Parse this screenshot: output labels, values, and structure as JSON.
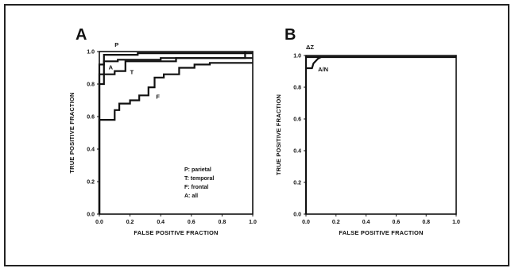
{
  "chart_data": [
    {
      "type": "line",
      "panel_label": "A",
      "xlabel": "FALSE POSITIVE FRACTION",
      "ylabel": "TRUE POSITIVE FRACTION",
      "xlim": [
        0,
        1
      ],
      "ylim": [
        0,
        1
      ],
      "xticks": [
        "0.0",
        "0.2",
        "0.4",
        "0.6",
        "0.8",
        "1.0"
      ],
      "yticks": [
        "0.0",
        "0.2",
        "0.4",
        "0.6",
        "0.8",
        "1.0"
      ],
      "grid": false,
      "legend_position": "bottom-right",
      "legend": [
        "P: parietal",
        "T: temporal",
        "F: frontal",
        "A: all"
      ],
      "series": [
        {
          "name": "P",
          "points": [
            [
              0,
              0
            ],
            [
              0,
              0.92
            ],
            [
              0.03,
              0.92
            ],
            [
              0.03,
              0.98
            ],
            [
              0.25,
              0.98
            ],
            [
              0.25,
              0.99
            ],
            [
              1,
              0.99
            ]
          ]
        },
        {
          "name": "A",
          "points": [
            [
              0,
              0
            ],
            [
              0,
              0.86
            ],
            [
              0.03,
              0.86
            ],
            [
              0.03,
              0.94
            ],
            [
              0.12,
              0.94
            ],
            [
              0.12,
              0.95
            ],
            [
              0.4,
              0.95
            ],
            [
              0.4,
              0.96
            ],
            [
              1,
              0.96
            ]
          ]
        },
        {
          "name": "T",
          "points": [
            [
              0,
              0
            ],
            [
              0,
              0.8
            ],
            [
              0.03,
              0.8
            ],
            [
              0.03,
              0.86
            ],
            [
              0.1,
              0.86
            ],
            [
              0.1,
              0.88
            ],
            [
              0.17,
              0.88
            ],
            [
              0.17,
              0.94
            ],
            [
              0.5,
              0.94
            ],
            [
              0.5,
              0.96
            ],
            [
              0.95,
              0.96
            ],
            [
              0.95,
              1.0
            ]
          ]
        },
        {
          "name": "F",
          "points": [
            [
              0,
              0
            ],
            [
              0,
              0.58
            ],
            [
              0.1,
              0.58
            ],
            [
              0.1,
              0.64
            ],
            [
              0.13,
              0.64
            ],
            [
              0.13,
              0.68
            ],
            [
              0.2,
              0.68
            ],
            [
              0.2,
              0.7
            ],
            [
              0.26,
              0.7
            ],
            [
              0.26,
              0.73
            ],
            [
              0.32,
              0.73
            ],
            [
              0.32,
              0.78
            ],
            [
              0.36,
              0.78
            ],
            [
              0.36,
              0.84
            ],
            [
              0.42,
              0.84
            ],
            [
              0.42,
              0.86
            ],
            [
              0.52,
              0.86
            ],
            [
              0.52,
              0.9
            ],
            [
              0.62,
              0.9
            ],
            [
              0.62,
              0.92
            ],
            [
              0.72,
              0.92
            ],
            [
              0.72,
              0.93
            ],
            [
              1,
              0.93
            ]
          ]
        }
      ],
      "curve_labels": [
        {
          "text": "P",
          "x": 0.1,
          "y": 1.03
        },
        {
          "text": "A",
          "x": 0.06,
          "y": 0.89
        },
        {
          "text": "T",
          "x": 0.2,
          "y": 0.86
        },
        {
          "text": "F",
          "x": 0.37,
          "y": 0.71
        }
      ]
    },
    {
      "type": "line",
      "panel_label": "B",
      "xlabel": "FALSE POSITIVE FRACTION",
      "ylabel": "TRUE POSITIVE FRACTION",
      "xlim": [
        0,
        1
      ],
      "ylim": [
        0,
        1
      ],
      "xticks": [
        "0.0",
        "0.2",
        "0.4",
        "0.6",
        "0.8",
        "1.0"
      ],
      "yticks": [
        "0.0",
        "0.2",
        "0.4",
        "0.6",
        "0.8",
        "1.0"
      ],
      "grid": false,
      "series": [
        {
          "name": "ΔZ",
          "points": [
            [
              0,
              0
            ],
            [
              0,
              0.99
            ],
            [
              1,
              0.99
            ]
          ]
        },
        {
          "name": "A/N",
          "points": [
            [
              0,
              0.92
            ],
            [
              0.04,
              0.92
            ],
            [
              0.05,
              0.95
            ],
            [
              0.08,
              0.98
            ],
            [
              0.1,
              0.99
            ]
          ]
        }
      ],
      "curve_labels": [
        {
          "text": "ΔZ",
          "x": 0.0,
          "y": 1.04
        },
        {
          "text": "A/N",
          "x": 0.08,
          "y": 0.9
        }
      ]
    }
  ]
}
